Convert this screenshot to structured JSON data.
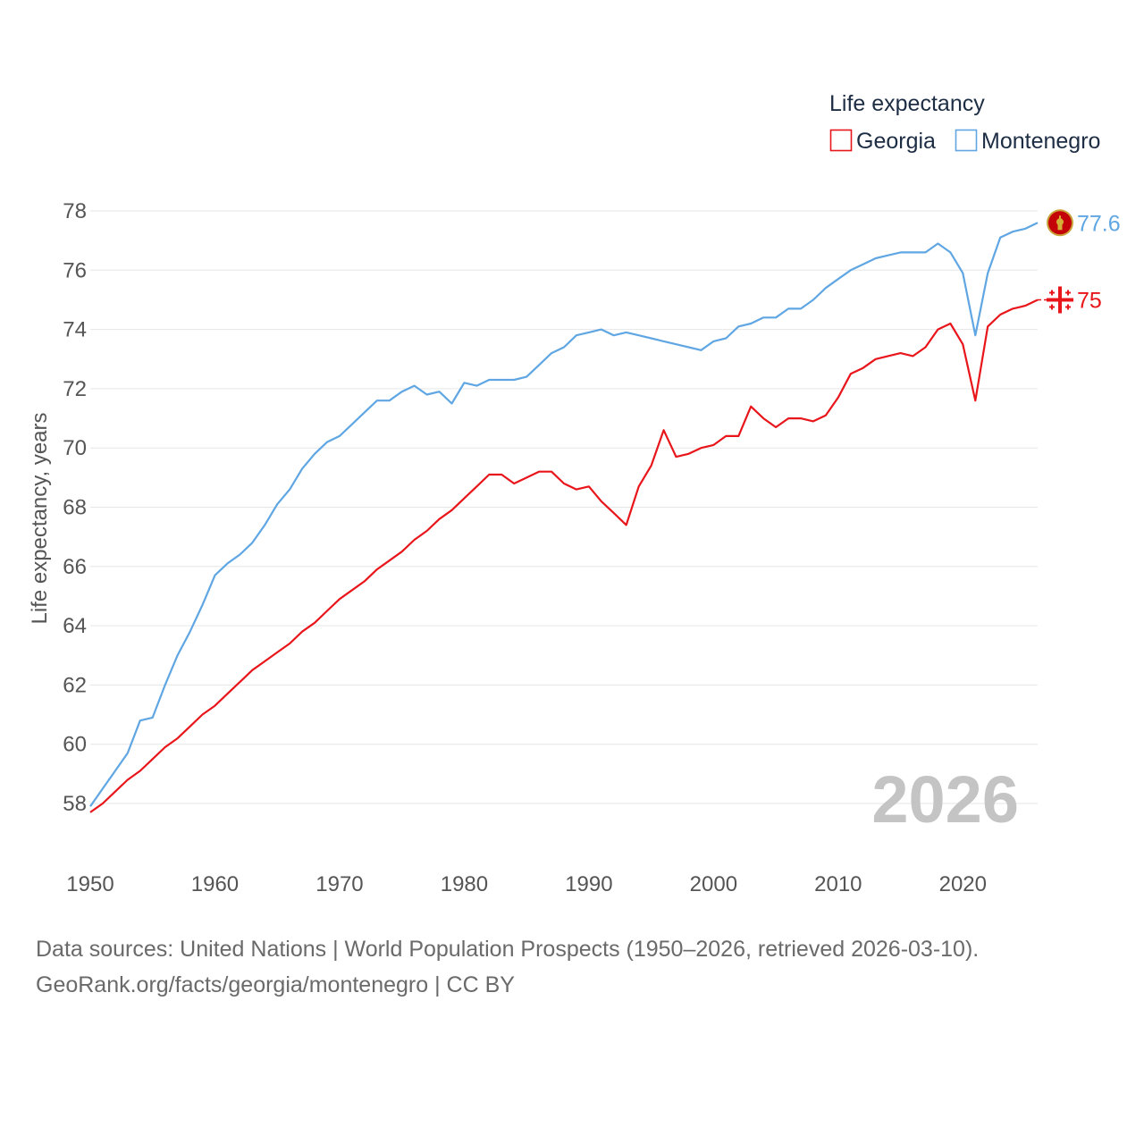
{
  "chart_data": {
    "type": "line",
    "legend": {
      "title": "Life expectancy",
      "placement": "top-right"
    },
    "ylabel": "Life expectancy, years",
    "xlabel": "",
    "xlim": [
      1950,
      2026
    ],
    "ylim": [
      56.5,
      78.5
    ],
    "x_ticks": [
      1950,
      1960,
      1970,
      1980,
      1990,
      2000,
      2010,
      2020
    ],
    "y_ticks": [
      58,
      60,
      62,
      64,
      66,
      68,
      70,
      72,
      74,
      76,
      78
    ],
    "grid": true,
    "year_label": "2026",
    "x": [
      1950,
      1951,
      1952,
      1953,
      1954,
      1955,
      1956,
      1957,
      1958,
      1959,
      1960,
      1961,
      1962,
      1963,
      1964,
      1965,
      1966,
      1967,
      1968,
      1969,
      1970,
      1971,
      1972,
      1973,
      1974,
      1975,
      1976,
      1977,
      1978,
      1979,
      1980,
      1981,
      1982,
      1983,
      1984,
      1985,
      1986,
      1987,
      1988,
      1989,
      1990,
      1991,
      1992,
      1993,
      1994,
      1995,
      1996,
      1997,
      1998,
      1999,
      2000,
      2001,
      2002,
      2003,
      2004,
      2005,
      2006,
      2007,
      2008,
      2009,
      2010,
      2011,
      2012,
      2013,
      2014,
      2015,
      2016,
      2017,
      2018,
      2019,
      2020,
      2021,
      2022,
      2023,
      2024,
      2025,
      2026
    ],
    "series": [
      {
        "name": "Georgia",
        "color": "#e8161b",
        "end_label": "75",
        "flag_icon": "georgia-flag-icon",
        "values": [
          57.7,
          58.0,
          58.4,
          58.8,
          59.1,
          59.5,
          59.9,
          60.2,
          60.6,
          61.0,
          61.3,
          61.7,
          62.1,
          62.5,
          62.8,
          63.1,
          63.4,
          63.8,
          64.1,
          64.5,
          64.9,
          65.2,
          65.5,
          65.9,
          66.2,
          66.5,
          66.9,
          67.2,
          67.6,
          67.9,
          68.3,
          68.7,
          69.1,
          69.1,
          68.8,
          69.0,
          69.2,
          69.2,
          68.8,
          68.6,
          68.7,
          68.2,
          67.8,
          67.4,
          68.7,
          69.4,
          70.6,
          69.7,
          69.8,
          70.0,
          70.1,
          70.4,
          70.4,
          71.4,
          71.0,
          70.7,
          71.0,
          71.0,
          70.9,
          71.1,
          71.7,
          72.5,
          72.7,
          73.0,
          73.1,
          73.2,
          73.1,
          73.4,
          74.0,
          74.2,
          73.5,
          71.6,
          74.1,
          74.5,
          74.7,
          74.8,
          75.0
        ]
      },
      {
        "name": "Montenegro",
        "color": "#5fa6e3",
        "end_label": "77.6",
        "flag_icon": "montenegro-flag-icon",
        "values": [
          57.9,
          58.5,
          59.1,
          59.7,
          60.8,
          60.9,
          62.0,
          63.0,
          63.8,
          64.7,
          65.7,
          66.1,
          66.4,
          66.8,
          67.4,
          68.1,
          68.6,
          69.3,
          69.8,
          70.2,
          70.4,
          70.8,
          71.2,
          71.6,
          71.6,
          71.9,
          72.1,
          71.8,
          71.9,
          71.5,
          72.2,
          72.1,
          72.3,
          72.3,
          72.3,
          72.4,
          72.8,
          73.2,
          73.4,
          73.8,
          73.9,
          74.0,
          73.8,
          73.9,
          73.8,
          73.7,
          73.6,
          73.5,
          73.4,
          73.3,
          73.6,
          73.7,
          74.1,
          74.2,
          74.4,
          74.4,
          74.7,
          74.7,
          75.0,
          75.4,
          75.7,
          76.0,
          76.2,
          76.4,
          76.5,
          76.6,
          76.6,
          76.6,
          76.9,
          76.6,
          75.9,
          73.8,
          75.9,
          77.1,
          77.3,
          77.4,
          77.6
        ]
      }
    ]
  },
  "source": {
    "line1": "Data sources: United Nations | World Population Prospects (1950–2026, retrieved 2026-03-10).",
    "line2": "GeoRank.org/facts/georgia/montenegro | CC BY"
  }
}
